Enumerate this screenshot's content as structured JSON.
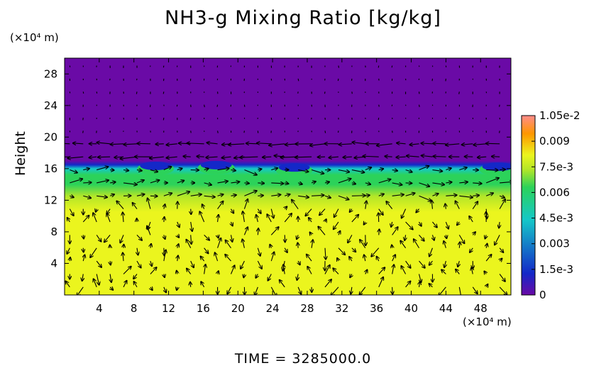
{
  "chart_data": {
    "type": "heatmap",
    "title": "NH3-g Mixing Ratio [kg/kg]",
    "ylabel": "Height",
    "xlabel": "",
    "x_unit": "(×10⁴ m)",
    "y_unit": "(×10⁴ m)",
    "xlim": [
      0,
      51.5
    ],
    "ylim": [
      0,
      30
    ],
    "x_ticks": [
      4,
      8,
      12,
      16,
      20,
      24,
      28,
      32,
      36,
      40,
      44,
      48
    ],
    "y_ticks": [
      4,
      8,
      12,
      16,
      20,
      24,
      28
    ],
    "colorbar": {
      "min": 0,
      "max": 0.0105,
      "tick_values": [
        0,
        0.0015,
        0.003,
        0.0045,
        0.006,
        0.0075,
        0.009,
        0.0105
      ],
      "tick_labels": [
        "0",
        "1.5e-3",
        "0.003",
        "4.5e-3",
        "0.006",
        "7.5e-3",
        "0.009",
        "1.05e-2"
      ]
    },
    "vertical_profile": [
      {
        "height": 0,
        "value": 0.008
      },
      {
        "height": 9,
        "value": 0.008
      },
      {
        "height": 10.5,
        "value": 0.0075
      },
      {
        "height": 12.5,
        "value": 0.0066
      },
      {
        "height": 14,
        "value": 0.0058
      },
      {
        "height": 15.2,
        "value": 0.0048
      },
      {
        "height": 16.0,
        "value": 0.0032
      },
      {
        "height": 16.5,
        "value": 0.0012
      },
      {
        "height": 17,
        "value": 0.0
      },
      {
        "height": 30,
        "value": 0.0
      }
    ],
    "tropopause_bumps": [
      {
        "x": 10.5,
        "height": 16.8
      },
      {
        "x": 17.5,
        "height": 16.9
      },
      {
        "x": 26.5,
        "height": 16.6
      },
      {
        "x": 50,
        "height": 16.7
      }
    ],
    "overlay": "wind vectors"
  },
  "footer": {
    "time_label": "TIME = 3285000.0"
  },
  "colors": {
    "background": "#ffffff",
    "zero": "#6a0aa6",
    "low": "#1428c8",
    "mid_low": "#15c8c8",
    "mid": "#2cd25a",
    "mid_high": "#b4e628",
    "high": "#ebf51e",
    "higher": "#ff9600",
    "max": "#ff8c8c"
  }
}
